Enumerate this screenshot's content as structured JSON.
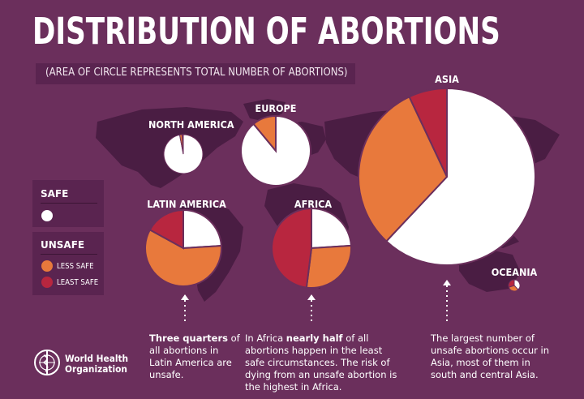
{
  "title": "DISTRIBUTION OF ABORTIONS",
  "subtitle": "(AREA OF CIRCLE REPRESENTS TOTAL NUMBER OF ABORTIONS)",
  "legend": {
    "safe_heading": "SAFE",
    "unsafe_heading": "UNSAFE",
    "less_safe": "LESS SAFE",
    "least_safe": "LEAST SAFE"
  },
  "colors": {
    "background": "#6b2f5c",
    "safe": "#ffffff",
    "less_safe": "#e8793c",
    "least_safe": "#b8263f",
    "map": "#4a1d43"
  },
  "chart_data": [
    {
      "type": "pie",
      "region": "NORTH AMERICA",
      "labels": [
        "SAFE",
        "LESS SAFE",
        "LEAST SAFE"
      ],
      "values": [
        0.97,
        0.02,
        0.01
      ]
    },
    {
      "type": "pie",
      "region": "EUROPE",
      "labels": [
        "SAFE",
        "LESS SAFE",
        "LEAST SAFE"
      ],
      "values": [
        0.89,
        0.11,
        0.0
      ]
    },
    {
      "type": "pie",
      "region": "LATIN AMERICA",
      "labels": [
        "SAFE",
        "LESS SAFE",
        "LEAST SAFE"
      ],
      "values": [
        0.24,
        0.59,
        0.17
      ]
    },
    {
      "type": "pie",
      "region": "AFRICA",
      "labels": [
        "SAFE",
        "LESS SAFE",
        "LEAST SAFE"
      ],
      "values": [
        0.24,
        0.28,
        0.48
      ]
    },
    {
      "type": "pie",
      "region": "ASIA",
      "labels": [
        "SAFE",
        "LESS SAFE",
        "LEAST SAFE"
      ],
      "values": [
        0.62,
        0.31,
        0.07
      ]
    },
    {
      "type": "pie",
      "region": "OCEANIA",
      "labels": [
        "SAFE",
        "LESS SAFE",
        "LEAST SAFE"
      ],
      "values": [
        0.38,
        0.32,
        0.3
      ]
    }
  ],
  "notes": {
    "latam_bold": "Three quarters",
    "latam_rest": "of all abortions in Latin America are unsafe.",
    "africa_pre": "In Africa",
    "africa_bold": "nearly half",
    "africa_post": "of all abortions happen in the least safe circumstances. The risk of dying from an unsafe abortion is the highest in Africa.",
    "asia": "The largest number of unsafe abortions occur in Asia, most of them in south and central Asia."
  },
  "org": {
    "line1": "World Health",
    "line2": "Organization",
    "logo_icon": "who-emblem-icon"
  }
}
